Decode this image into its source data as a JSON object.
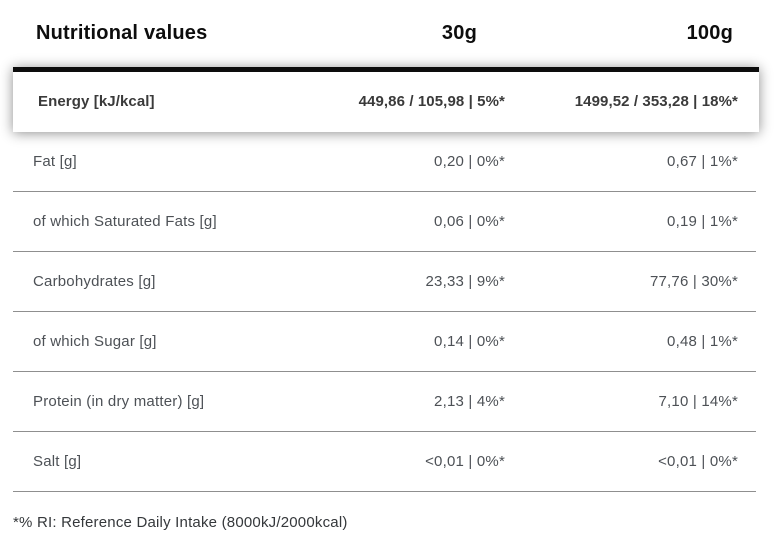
{
  "colors": {
    "ink": "#0d0d0d",
    "row-text": "#4d5156",
    "energy-text": "#3a3a3a",
    "divider": "#8f8f8f",
    "footnote": "#35383b",
    "card-bg": "#ffffff"
  },
  "table": {
    "title": "Nutritional values",
    "columns": {
      "serving": "30g",
      "per100": "100g"
    },
    "energy_row": {
      "label": "Energy [kJ/kcal]",
      "v30": "449,86 / 105,98 | 5%*",
      "v100": "1499,52 / 353,28 | 18%*"
    },
    "rows": [
      {
        "label": "Fat [g]",
        "v30": "0,20 | 0%*",
        "v100": "0,67 | 1%*"
      },
      {
        "label": "of which Saturated Fats [g]",
        "v30": "0,06 | 0%*",
        "v100": "0,19 | 1%*"
      },
      {
        "label": "Carbohydrates [g]",
        "v30": "23,33 | 9%*",
        "v100": "77,76 | 30%*"
      },
      {
        "label": "of which Sugar [g]",
        "v30": "0,14 | 0%*",
        "v100": "0,48 | 1%*"
      },
      {
        "label": "Protein (in dry matter) [g]",
        "v30": "2,13 | 4%*",
        "v100": "7,10 | 14%*"
      },
      {
        "label": "Salt [g]",
        "v30": "<0,01 | 0%*",
        "v100": "<0,01 | 0%*"
      }
    ],
    "footnote": "*% RI: Reference Daily Intake (8000kJ/2000kcal)"
  }
}
